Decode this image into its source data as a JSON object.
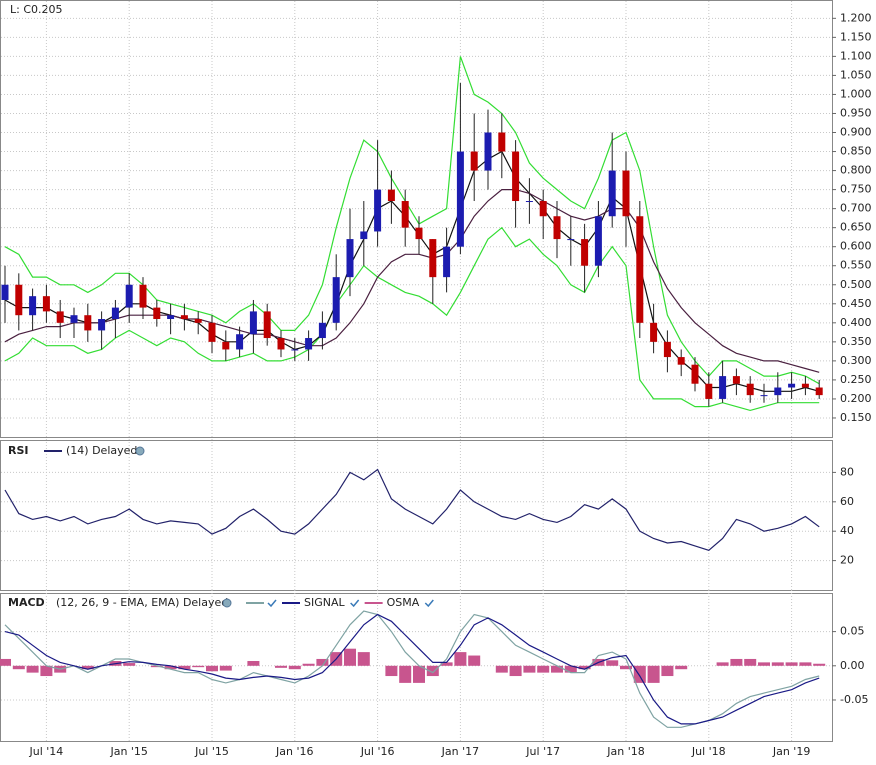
{
  "header": {
    "last": "L: C0.205"
  },
  "chart_data": [
    {
      "type": "candlestick",
      "grid": true,
      "up_color": "#1c1cb0",
      "down_color": "#c00000",
      "x": [
        "2014-04",
        "2014-05",
        "2014-06",
        "2014-07",
        "2014-08",
        "2014-09",
        "2014-10",
        "2014-11",
        "2014-12",
        "2015-01",
        "2015-02",
        "2015-03",
        "2015-04",
        "2015-05",
        "2015-06",
        "2015-07",
        "2015-08",
        "2015-09",
        "2015-10",
        "2015-11",
        "2015-12",
        "2016-01",
        "2016-02",
        "2016-03",
        "2016-04",
        "2016-05",
        "2016-06",
        "2016-07",
        "2016-08",
        "2016-09",
        "2016-10",
        "2016-11",
        "2016-12",
        "2017-01",
        "2017-02",
        "2017-03",
        "2017-04",
        "2017-05",
        "2017-06",
        "2017-07",
        "2017-08",
        "2017-09",
        "2017-10",
        "2017-11",
        "2017-12",
        "2018-01",
        "2018-02",
        "2018-03",
        "2018-04",
        "2018-05",
        "2018-06",
        "2018-07",
        "2018-08",
        "2018-09",
        "2018-10",
        "2018-11",
        "2018-12",
        "2019-01",
        "2019-02",
        "2019-03"
      ],
      "open": [
        0.46,
        0.5,
        0.42,
        0.47,
        0.43,
        0.4,
        0.42,
        0.38,
        0.41,
        0.44,
        0.5,
        0.44,
        0.41,
        0.42,
        0.41,
        0.4,
        0.35,
        0.33,
        0.37,
        0.43,
        0.36,
        0.33,
        0.33,
        0.36,
        0.4,
        0.52,
        0.62,
        0.64,
        0.75,
        0.72,
        0.65,
        0.62,
        0.52,
        0.6,
        0.85,
        0.8,
        0.9,
        0.85,
        0.72,
        0.72,
        0.68,
        0.62,
        0.62,
        0.55,
        0.68,
        0.8,
        0.68,
        0.4,
        0.35,
        0.31,
        0.29,
        0.24,
        0.2,
        0.26,
        0.24,
        0.21,
        0.21,
        0.23,
        0.24,
        0.23
      ],
      "high": [
        0.55,
        0.53,
        0.49,
        0.5,
        0.46,
        0.44,
        0.45,
        0.43,
        0.46,
        0.53,
        0.52,
        0.46,
        0.45,
        0.45,
        0.43,
        0.42,
        0.38,
        0.39,
        0.46,
        0.45,
        0.38,
        0.36,
        0.38,
        0.43,
        0.58,
        0.7,
        0.72,
        0.88,
        0.8,
        0.75,
        0.68,
        0.62,
        0.65,
        1.03,
        0.95,
        0.96,
        0.95,
        0.88,
        0.78,
        0.75,
        0.72,
        0.68,
        0.66,
        0.72,
        0.9,
        0.85,
        0.72,
        0.45,
        0.38,
        0.33,
        0.31,
        0.27,
        0.3,
        0.28,
        0.26,
        0.24,
        0.27,
        0.27,
        0.26,
        0.25
      ],
      "low": [
        0.4,
        0.38,
        0.38,
        0.4,
        0.36,
        0.36,
        0.35,
        0.33,
        0.36,
        0.4,
        0.41,
        0.39,
        0.37,
        0.38,
        0.37,
        0.32,
        0.3,
        0.31,
        0.32,
        0.34,
        0.31,
        0.3,
        0.3,
        0.33,
        0.38,
        0.47,
        0.55,
        0.6,
        0.66,
        0.6,
        0.58,
        0.45,
        0.48,
        0.58,
        0.72,
        0.75,
        0.78,
        0.65,
        0.66,
        0.62,
        0.57,
        0.55,
        0.48,
        0.52,
        0.65,
        0.6,
        0.36,
        0.32,
        0.27,
        0.26,
        0.22,
        0.18,
        0.19,
        0.21,
        0.19,
        0.19,
        0.19,
        0.2,
        0.21,
        0.2
      ],
      "close": [
        0.5,
        0.42,
        0.47,
        0.43,
        0.4,
        0.42,
        0.38,
        0.41,
        0.44,
        0.5,
        0.44,
        0.41,
        0.42,
        0.41,
        0.4,
        0.35,
        0.33,
        0.37,
        0.43,
        0.36,
        0.33,
        0.33,
        0.36,
        0.4,
        0.52,
        0.62,
        0.64,
        0.75,
        0.72,
        0.65,
        0.62,
        0.52,
        0.6,
        0.85,
        0.8,
        0.9,
        0.85,
        0.72,
        0.72,
        0.68,
        0.62,
        0.62,
        0.55,
        0.68,
        0.8,
        0.68,
        0.4,
        0.35,
        0.31,
        0.29,
        0.24,
        0.2,
        0.26,
        0.24,
        0.21,
        0.21,
        0.23,
        0.24,
        0.23,
        0.21
      ],
      "series": [
        {
          "color": "#33dd33",
          "values": [
            0.6,
            0.58,
            0.52,
            0.52,
            0.5,
            0.5,
            0.48,
            0.5,
            0.53,
            0.53,
            0.5,
            0.46,
            0.45,
            0.44,
            0.43,
            0.42,
            0.4,
            0.43,
            0.45,
            0.42,
            0.38,
            0.38,
            0.42,
            0.5,
            0.65,
            0.78,
            0.88,
            0.85,
            0.78,
            0.72,
            0.66,
            0.68,
            0.7,
            1.1,
            1.0,
            0.98,
            0.95,
            0.9,
            0.82,
            0.78,
            0.75,
            0.72,
            0.7,
            0.78,
            0.88,
            0.9,
            0.8,
            0.6,
            0.42,
            0.35,
            0.3,
            0.26,
            0.3,
            0.3,
            0.28,
            0.26,
            0.26,
            0.27,
            0.26,
            0.24
          ]
        },
        {
          "color": "#33dd33",
          "values": [
            0.3,
            0.32,
            0.36,
            0.34,
            0.34,
            0.34,
            0.32,
            0.33,
            0.36,
            0.38,
            0.36,
            0.34,
            0.36,
            0.35,
            0.32,
            0.3,
            0.3,
            0.31,
            0.32,
            0.3,
            0.3,
            0.31,
            0.33,
            0.37,
            0.45,
            0.5,
            0.55,
            0.52,
            0.5,
            0.48,
            0.47,
            0.45,
            0.42,
            0.48,
            0.55,
            0.62,
            0.65,
            0.6,
            0.62,
            0.58,
            0.55,
            0.5,
            0.48,
            0.55,
            0.6,
            0.55,
            0.25,
            0.2,
            0.2,
            0.2,
            0.18,
            0.18,
            0.19,
            0.18,
            0.17,
            0.18,
            0.19,
            0.19,
            0.19,
            0.19
          ]
        },
        {
          "color": "#111111",
          "values": [
            0.46,
            0.44,
            0.44,
            0.44,
            0.42,
            0.41,
            0.4,
            0.4,
            0.42,
            0.45,
            0.45,
            0.43,
            0.42,
            0.41,
            0.4,
            0.37,
            0.35,
            0.35,
            0.38,
            0.38,
            0.35,
            0.33,
            0.34,
            0.37,
            0.45,
            0.55,
            0.62,
            0.7,
            0.72,
            0.68,
            0.63,
            0.58,
            0.6,
            0.7,
            0.8,
            0.83,
            0.85,
            0.78,
            0.74,
            0.7,
            0.65,
            0.62,
            0.6,
            0.65,
            0.73,
            0.7,
            0.55,
            0.4,
            0.34,
            0.3,
            0.27,
            0.23,
            0.23,
            0.24,
            0.23,
            0.22,
            0.22,
            0.22,
            0.23,
            0.22
          ]
        },
        {
          "color": "#4a2040",
          "values": [
            0.35,
            0.37,
            0.38,
            0.39,
            0.39,
            0.4,
            0.4,
            0.4,
            0.41,
            0.42,
            0.42,
            0.42,
            0.42,
            0.41,
            0.41,
            0.4,
            0.39,
            0.38,
            0.37,
            0.37,
            0.36,
            0.35,
            0.34,
            0.34,
            0.36,
            0.4,
            0.45,
            0.52,
            0.56,
            0.58,
            0.58,
            0.57,
            0.58,
            0.62,
            0.68,
            0.72,
            0.75,
            0.75,
            0.74,
            0.72,
            0.7,
            0.68,
            0.67,
            0.68,
            0.7,
            0.7,
            0.65,
            0.56,
            0.49,
            0.44,
            0.4,
            0.37,
            0.34,
            0.32,
            0.31,
            0.3,
            0.3,
            0.29,
            0.28,
            0.27
          ]
        }
      ],
      "ylim": [
        0.1,
        1.235
      ],
      "yticks": [
        {
          "value": 0.15,
          "label": "0.150"
        },
        {
          "value": 0.2,
          "label": "0.200"
        },
        {
          "value": 0.25,
          "label": "0.250"
        },
        {
          "value": 0.3,
          "label": "0.300"
        },
        {
          "value": 0.35,
          "label": "0.350"
        },
        {
          "value": 0.4,
          "label": "0.400"
        },
        {
          "value": 0.45,
          "label": "0.450"
        },
        {
          "value": 0.5,
          "label": "0.500"
        },
        {
          "value": 0.55,
          "label": "0.550"
        },
        {
          "value": 0.6,
          "label": "0.600"
        },
        {
          "value": 0.65,
          "label": "0.650"
        },
        {
          "value": 0.7,
          "label": "0.700"
        },
        {
          "value": 0.75,
          "label": "0.750"
        },
        {
          "value": 0.8,
          "label": "0.800"
        },
        {
          "value": 0.85,
          "label": "0.850"
        },
        {
          "value": 0.9,
          "label": "0.900"
        },
        {
          "value": 0.95,
          "label": "0.950"
        },
        {
          "value": 1.0,
          "label": "1.000"
        },
        {
          "value": 1.05,
          "label": "1.050"
        },
        {
          "value": 1.1,
          "label": "1.100"
        },
        {
          "value": 1.15,
          "label": "1.150"
        },
        {
          "value": 1.2,
          "label": "1.200"
        }
      ]
    },
    {
      "type": "line",
      "title": "RSI",
      "grid": true,
      "series": [
        {
          "name": "(14) Delayed",
          "color": "#22226a",
          "values": [
            68,
            52,
            48,
            50,
            47,
            50,
            45,
            48,
            50,
            55,
            48,
            45,
            47,
            46,
            45,
            38,
            42,
            50,
            55,
            48,
            40,
            38,
            45,
            55,
            65,
            80,
            75,
            82,
            62,
            55,
            50,
            45,
            55,
            68,
            60,
            55,
            50,
            48,
            52,
            48,
            46,
            50,
            58,
            55,
            62,
            55,
            40,
            35,
            32,
            33,
            30,
            27,
            35,
            48,
            45,
            40,
            42,
            45,
            50,
            43
          ]
        }
      ],
      "ylim": [
        0,
        100
      ],
      "yticks": [
        20,
        40,
        60,
        80
      ]
    },
    {
      "type": "macd",
      "title": "MACD",
      "subtitle": "(12, 26, 9 - EMA, EMA) Delayed",
      "grid": true,
      "series": [
        {
          "color": "#7fa3a3",
          "values": [
            0.06,
            0.04,
            0.02,
            0.0,
            -0.005,
            0.0,
            -0.01,
            0.0,
            0.01,
            0.01,
            0.005,
            0.0,
            -0.005,
            -0.01,
            -0.01,
            -0.02,
            -0.025,
            -0.02,
            -0.01,
            -0.015,
            -0.02,
            -0.025,
            -0.015,
            0.0,
            0.03,
            0.06,
            0.08,
            0.075,
            0.05,
            0.02,
            0.0,
            -0.01,
            0.01,
            0.05,
            0.075,
            0.07,
            0.05,
            0.03,
            0.02,
            0.01,
            0.0,
            -0.01,
            -0.01,
            0.015,
            0.02,
            0.01,
            -0.04,
            -0.075,
            -0.09,
            -0.09,
            -0.085,
            -0.08,
            -0.07,
            -0.055,
            -0.045,
            -0.04,
            -0.035,
            -0.03,
            -0.02,
            -0.015
          ]
        },
        {
          "name": "SIGNAL",
          "color": "#1a1a86",
          "values": [
            0.05,
            0.045,
            0.03,
            0.015,
            0.005,
            0.0,
            -0.005,
            0.0,
            0.003,
            0.006,
            0.005,
            0.002,
            0.0,
            -0.005,
            -0.008,
            -0.012,
            -0.018,
            -0.02,
            -0.017,
            -0.015,
            -0.017,
            -0.02,
            -0.018,
            -0.01,
            0.01,
            0.035,
            0.06,
            0.075,
            0.065,
            0.045,
            0.025,
            0.005,
            0.005,
            0.03,
            0.06,
            0.07,
            0.06,
            0.045,
            0.03,
            0.02,
            0.01,
            0.0,
            -0.005,
            0.005,
            0.012,
            0.015,
            -0.015,
            -0.05,
            -0.075,
            -0.085,
            -0.085,
            -0.08,
            -0.075,
            -0.065,
            -0.055,
            -0.045,
            -0.04,
            -0.035,
            -0.025,
            -0.018
          ]
        },
        {
          "name": "OSMA",
          "type": "bar",
          "color": "#c8558e",
          "values": [
            0.01,
            -0.005,
            -0.01,
            -0.015,
            -0.01,
            0,
            -0.005,
            0,
            0.007,
            0.004,
            0,
            -0.002,
            -0.005,
            -0.005,
            -0.002,
            -0.008,
            -0.007,
            0,
            0.007,
            0,
            -0.003,
            -0.005,
            0.003,
            0.01,
            0.02,
            0.025,
            0.02,
            0,
            -0.015,
            -0.025,
            -0.025,
            -0.015,
            0.005,
            0.02,
            0.015,
            0,
            -0.01,
            -0.015,
            -0.01,
            -0.01,
            -0.01,
            -0.01,
            -0.005,
            0.01,
            0.008,
            -0.005,
            -0.025,
            -0.025,
            -0.015,
            -0.005,
            0,
            0,
            0.005,
            0.01,
            0.01,
            0.005,
            0.005,
            0.005,
            0.005,
            0.003
          ]
        }
      ],
      "ylim": [
        -0.11,
        0.105
      ],
      "yticks": [
        {
          "value": -0.05,
          "label": "-0.05"
        },
        {
          "value": 0,
          "label": "0.00"
        },
        {
          "value": 0.05,
          "label": "0.05"
        }
      ],
      "xticks": [
        {
          "value": "2014-07",
          "label": "Jul '14"
        },
        {
          "value": "2015-01",
          "label": "Jan '15"
        },
        {
          "value": "2015-07",
          "label": "Jul '15"
        },
        {
          "value": "2016-01",
          "label": "Jan '16"
        },
        {
          "value": "2016-07",
          "label": "Jul '16"
        },
        {
          "value": "2017-01",
          "label": "Jan '17"
        },
        {
          "value": "2017-07",
          "label": "Jul '17"
        },
        {
          "value": "2018-01",
          "label": "Jan '18"
        },
        {
          "value": "2018-07",
          "label": "Jul '18"
        },
        {
          "value": "2019-01",
          "label": "Jan '19"
        }
      ]
    }
  ]
}
